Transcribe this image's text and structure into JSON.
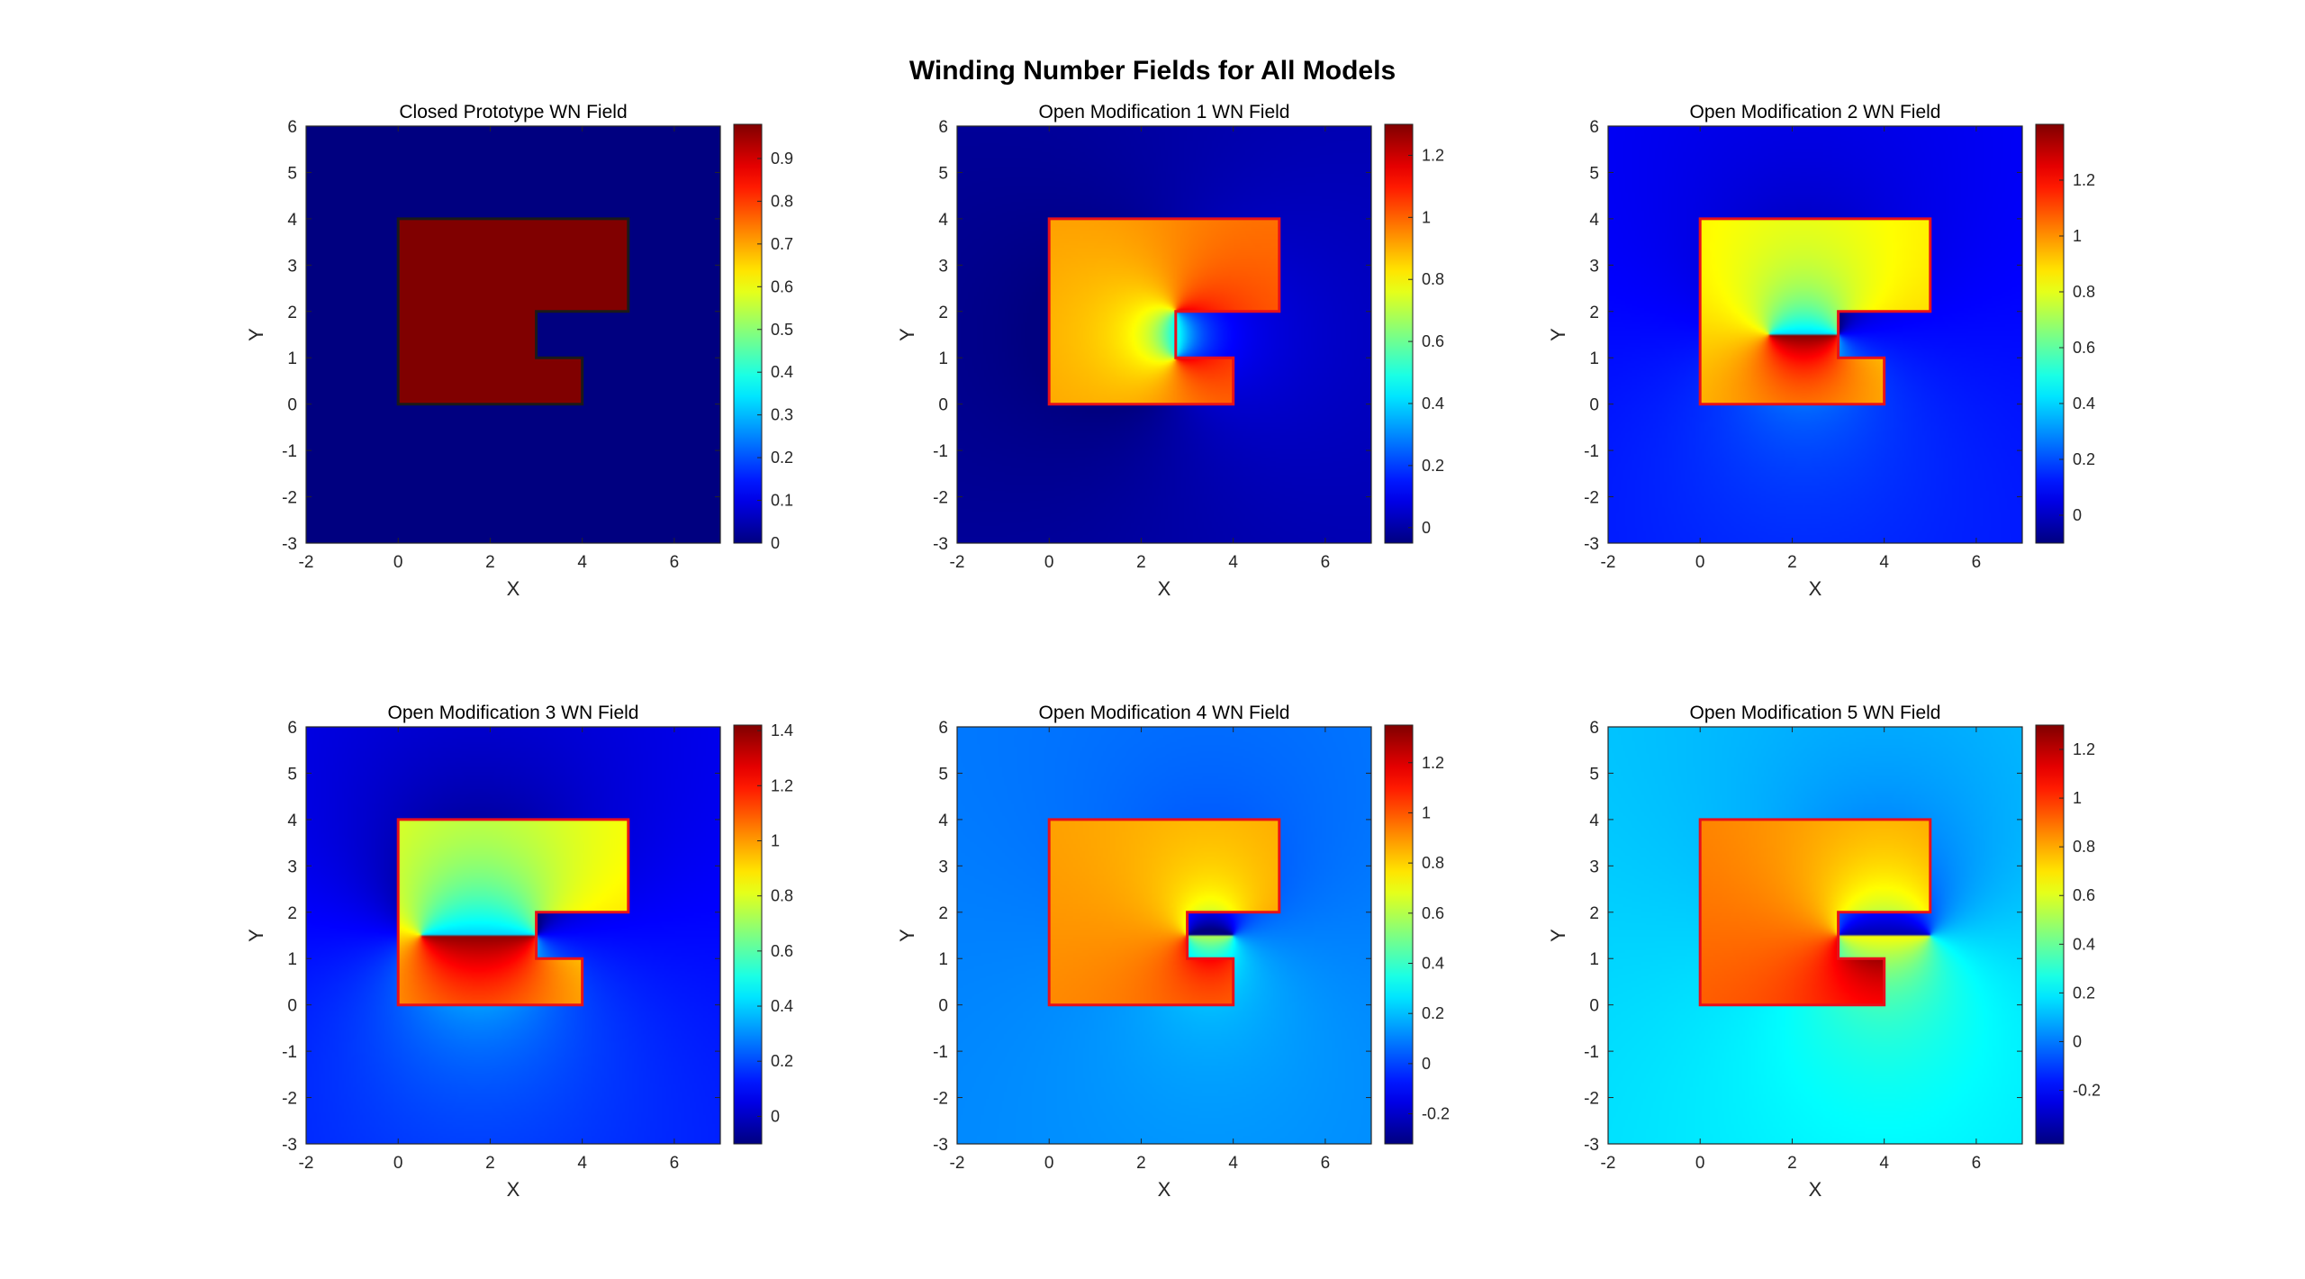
{
  "figure": {
    "title": "Winding Number Fields for All Models"
  },
  "chart_data": [
    {
      "type": "heatmap",
      "title": "Closed Prototype WN Field",
      "xlabel": "X",
      "ylabel": "Y",
      "xlim": [
        -2,
        7
      ],
      "ylim": [
        -3,
        6
      ],
      "xticks": [
        -2,
        0,
        2,
        4,
        6
      ],
      "yticks": [
        -3,
        -2,
        -1,
        0,
        1,
        2,
        3,
        4,
        5,
        6
      ],
      "colormap": "jet",
      "clim": [
        0,
        0.98
      ],
      "colorbar_ticks": [
        0,
        0.1,
        0.2,
        0.3,
        0.4,
        0.5,
        0.6,
        0.7,
        0.8,
        0.9
      ],
      "colorbar_tick_labels": [
        "0",
        "0.1",
        "0.2",
        "0.3",
        "0.4",
        "0.5",
        "0.6",
        "0.7",
        "0.8",
        "0.9"
      ],
      "background_value": 0,
      "inside_value": 0.98,
      "boundary": [
        [
          0,
          0
        ],
        [
          4,
          0
        ],
        [
          4,
          1
        ],
        [
          3,
          1
        ],
        [
          3,
          2
        ],
        [
          5,
          2
        ],
        [
          5,
          4
        ],
        [
          0,
          4
        ]
      ],
      "outline_color": "#1a1a1a",
      "open_gap": null
    },
    {
      "type": "heatmap",
      "title": "Open Modification 1 WN Field",
      "xlabel": "X",
      "ylabel": "Y",
      "xlim": [
        -2,
        7
      ],
      "ylim": [
        -3,
        6
      ],
      "xticks": [
        -2,
        0,
        2,
        4,
        6
      ],
      "yticks": [
        -3,
        -2,
        -1,
        0,
        1,
        2,
        3,
        4,
        5,
        6
      ],
      "colormap": "jet",
      "clim": [
        -0.05,
        1.3
      ],
      "colorbar_ticks": [
        0,
        0.2,
        0.4,
        0.6,
        0.8,
        1,
        1.2
      ],
      "colorbar_tick_labels": [
        "0",
        "0.2",
        "0.4",
        "0.6",
        "0.8",
        "1",
        "1.2"
      ],
      "background_value": 0,
      "inside_value": 0.95,
      "boundary": [
        [
          0,
          0
        ],
        [
          4,
          0
        ],
        [
          4,
          1
        ],
        [
          2.75,
          1
        ],
        [
          2.75,
          2
        ],
        [
          5,
          2
        ],
        [
          5,
          4
        ],
        [
          0,
          4
        ]
      ],
      "outline_color": "#e8101a",
      "open_gap": [
        [
          2.75,
          1
        ],
        [
          2.75,
          2
        ]
      ]
    },
    {
      "type": "heatmap",
      "title": "Open Modification 2 WN Field",
      "xlabel": "X",
      "ylabel": "Y",
      "xlim": [
        -2,
        7
      ],
      "ylim": [
        -3,
        6
      ],
      "xticks": [
        -2,
        0,
        2,
        4,
        6
      ],
      "yticks": [
        -3,
        -2,
        -1,
        0,
        1,
        2,
        3,
        4,
        5,
        6
      ],
      "colormap": "jet",
      "clim": [
        -0.1,
        1.4
      ],
      "colorbar_ticks": [
        0,
        0.2,
        0.4,
        0.6,
        0.8,
        1,
        1.2
      ],
      "colorbar_tick_labels": [
        "0",
        "0.2",
        "0.4",
        "0.6",
        "0.8",
        "1",
        "1.2"
      ],
      "background_value": 0.1,
      "inside_value": 0.9,
      "boundary": [
        [
          0,
          0
        ],
        [
          4,
          0
        ],
        [
          4,
          1
        ],
        [
          3,
          1
        ],
        [
          3,
          2
        ],
        [
          5,
          2
        ],
        [
          5,
          4
        ],
        [
          0,
          4
        ]
      ],
      "outline_color": "#e8101a",
      "open_gap": [
        [
          1.5,
          1.5
        ],
        [
          3,
          1.5
        ]
      ]
    },
    {
      "type": "heatmap",
      "title": "Open Modification 3 WN Field",
      "xlabel": "X",
      "ylabel": "Y",
      "xlim": [
        -2,
        7
      ],
      "ylim": [
        -3,
        6
      ],
      "xticks": [
        -2,
        0,
        2,
        4,
        6
      ],
      "yticks": [
        -3,
        -2,
        -1,
        0,
        1,
        2,
        3,
        4,
        5,
        6
      ],
      "colormap": "jet",
      "clim": [
        -0.1,
        1.42
      ],
      "colorbar_ticks": [
        0,
        0.2,
        0.4,
        0.6,
        0.8,
        1,
        1.2,
        1.4
      ],
      "colorbar_tick_labels": [
        "0",
        "0.2",
        "0.4",
        "0.6",
        "0.8",
        "1",
        "1.2",
        "1.4"
      ],
      "background_value": 0.1,
      "inside_value": 0.9,
      "boundary": [
        [
          0,
          0
        ],
        [
          4,
          0
        ],
        [
          4,
          1
        ],
        [
          3,
          1
        ],
        [
          3,
          2
        ],
        [
          5,
          2
        ],
        [
          5,
          4
        ],
        [
          0,
          4
        ]
      ],
      "outline_color": "#e8101a",
      "open_gap": [
        [
          0.5,
          1.5
        ],
        [
          3,
          1.5
        ]
      ]
    },
    {
      "type": "heatmap",
      "title": "Open Modification 4 WN Field",
      "xlabel": "X",
      "ylabel": "Y",
      "xlim": [
        -2,
        7
      ],
      "ylim": [
        -3,
        6
      ],
      "xticks": [
        -2,
        0,
        2,
        4,
        6
      ],
      "yticks": [
        -3,
        -2,
        -1,
        0,
        1,
        2,
        3,
        4,
        5,
        6
      ],
      "colormap": "jet",
      "clim": [
        -0.32,
        1.35
      ],
      "colorbar_ticks": [
        -0.2,
        0,
        0.2,
        0.4,
        0.6,
        0.8,
        1,
        1.2
      ],
      "colorbar_tick_labels": [
        "-0.2",
        "0",
        "0.2",
        "0.4",
        "0.6",
        "0.8",
        "1",
        "1.2"
      ],
      "background_value": 0.1,
      "inside_value": 0.9,
      "boundary": [
        [
          0,
          0
        ],
        [
          4,
          0
        ],
        [
          4,
          1
        ],
        [
          3,
          1
        ],
        [
          3,
          2
        ],
        [
          5,
          2
        ],
        [
          5,
          4
        ],
        [
          0,
          4
        ]
      ],
      "outline_color": "#e8101a",
      "open_gap": [
        [
          3,
          1.5
        ],
        [
          4,
          1.5
        ]
      ]
    },
    {
      "type": "heatmap",
      "title": "Open Modification 5 WN Field",
      "xlabel": "X",
      "ylabel": "Y",
      "xlim": [
        -2,
        7
      ],
      "ylim": [
        -3,
        6
      ],
      "xticks": [
        -2,
        0,
        2,
        4,
        6
      ],
      "yticks": [
        -3,
        -2,
        -1,
        0,
        1,
        2,
        3,
        4,
        5,
        6
      ],
      "colormap": "jet",
      "clim": [
        -0.42,
        1.3
      ],
      "colorbar_ticks": [
        -0.2,
        0,
        0.2,
        0.4,
        0.6,
        0.8,
        1,
        1.2
      ],
      "colorbar_tick_labels": [
        "-0.2",
        "0",
        "0.2",
        "0.4",
        "0.6",
        "0.8",
        "1",
        "1.2"
      ],
      "background_value": 0.15,
      "inside_value": 0.9,
      "boundary": [
        [
          0,
          0
        ],
        [
          4,
          0
        ],
        [
          4,
          1
        ],
        [
          3,
          1
        ],
        [
          3,
          2
        ],
        [
          5,
          2
        ],
        [
          5,
          4
        ],
        [
          0,
          4
        ]
      ],
      "outline_color": "#e8101a",
      "open_gap": [
        [
          3,
          1.5
        ],
        [
          5,
          1.5
        ]
      ]
    }
  ]
}
